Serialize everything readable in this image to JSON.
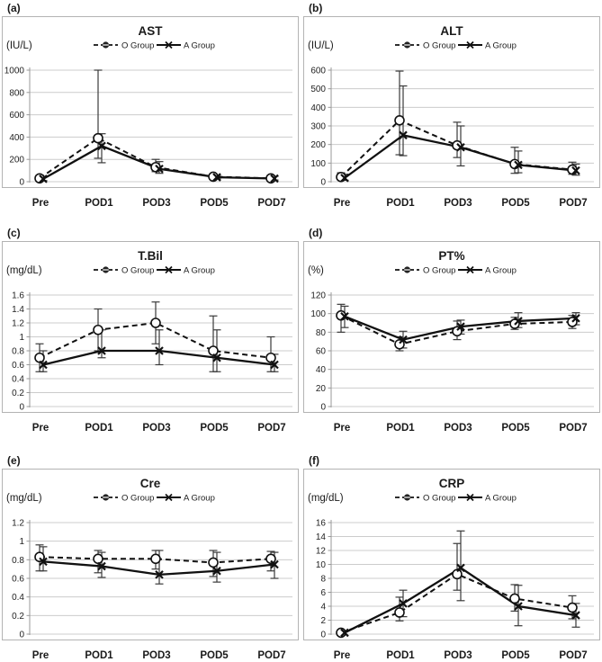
{
  "figure": {
    "background": "#ffffff",
    "colors": {
      "text": "#1a1a1a",
      "tick_text": "#222222",
      "grid": "#cccccc",
      "axis": "#999999",
      "panel_border": "#b3b3b3",
      "series_line": "#111111",
      "error_bar": "#3a3a3a",
      "marker_fill": "#ffffff"
    },
    "legend": {
      "o_label": "O Group",
      "a_label": "A Group"
    }
  },
  "chart_data": [
    {
      "type": "line",
      "letter": "(a)",
      "title": "AST",
      "ylabel": "(IU/L)",
      "categories": [
        "Pre",
        "POD1",
        "POD3",
        "POD5",
        "POD7"
      ],
      "ylim": [
        0,
        1000
      ],
      "yticks": [
        0,
        200,
        400,
        600,
        800,
        1000
      ],
      "grid": true,
      "legend_position": "top-center",
      "series": [
        {
          "name": "O Group",
          "line": "dashed",
          "marker": "circle",
          "values": [
            30,
            390,
            130,
            45,
            30
          ],
          "err_low": [
            12,
            210,
            90,
            28,
            18
          ],
          "err_high": [
            55,
            1000,
            200,
            62,
            45
          ]
        },
        {
          "name": "A Group",
          "line": "solid",
          "marker": "x",
          "values": [
            25,
            320,
            115,
            40,
            28
          ],
          "err_low": [
            10,
            170,
            75,
            25,
            15
          ],
          "err_high": [
            48,
            430,
            180,
            58,
            48
          ]
        }
      ]
    },
    {
      "type": "line",
      "letter": "(b)",
      "title": "ALT",
      "ylabel": "(IU/L)",
      "categories": [
        "Pre",
        "POD1",
        "POD3",
        "POD5",
        "POD7"
      ],
      "ylim": [
        0,
        600
      ],
      "yticks": [
        0,
        100,
        200,
        300,
        400,
        500,
        600
      ],
      "grid": true,
      "legend_position": "top-center",
      "series": [
        {
          "name": "O Group",
          "line": "dashed",
          "marker": "circle",
          "values": [
            25,
            330,
            195,
            95,
            65
          ],
          "err_low": [
            10,
            145,
            130,
            45,
            40
          ],
          "err_high": [
            48,
            595,
            320,
            185,
            105
          ]
        },
        {
          "name": "A Group",
          "line": "solid",
          "marker": "x",
          "values": [
            20,
            250,
            185,
            90,
            60
          ],
          "err_low": [
            8,
            140,
            85,
            48,
            35
          ],
          "err_high": [
            40,
            515,
            300,
            165,
            95
          ]
        }
      ]
    },
    {
      "type": "line",
      "letter": "(c)",
      "title": "T.Bil",
      "ylabel": "(mg/dL)",
      "categories": [
        "Pre",
        "POD1",
        "POD3",
        "POD5",
        "POD7"
      ],
      "ylim": [
        0,
        1.6
      ],
      "yticks": [
        0,
        0.2,
        0.4,
        0.6,
        0.8,
        1,
        1.2,
        1.4,
        1.6
      ],
      "grid": true,
      "legend_position": "top-center",
      "series": [
        {
          "name": "O Group",
          "line": "dashed",
          "marker": "circle",
          "values": [
            0.7,
            1.1,
            1.2,
            0.8,
            0.7
          ],
          "err_low": [
            0.5,
            0.8,
            0.9,
            0.5,
            0.5
          ],
          "err_high": [
            0.9,
            1.4,
            1.5,
            1.3,
            1.0
          ]
        },
        {
          "name": "A Group",
          "line": "solid",
          "marker": "x",
          "values": [
            0.6,
            0.8,
            0.8,
            0.7,
            0.6
          ],
          "err_low": [
            0.5,
            0.7,
            0.6,
            0.5,
            0.5
          ],
          "err_high": [
            0.8,
            1.1,
            1.1,
            1.1,
            0.75
          ]
        }
      ]
    },
    {
      "type": "line",
      "letter": "(d)",
      "title": "PT%",
      "ylabel": "(%)",
      "categories": [
        "Pre",
        "POD1",
        "POD3",
        "POD5",
        "POD7"
      ],
      "ylim": [
        0,
        120
      ],
      "yticks": [
        0,
        20,
        40,
        60,
        80,
        100,
        120
      ],
      "grid": true,
      "legend_position": "top-center",
      "series": [
        {
          "name": "O Group",
          "line": "dashed",
          "marker": "circle",
          "values": [
            98,
            67,
            81,
            89,
            91
          ],
          "err_low": [
            80,
            60,
            72,
            83,
            84
          ],
          "err_high": [
            110,
            75,
            92,
            96,
            98
          ]
        },
        {
          "name": "A Group",
          "line": "solid",
          "marker": "x",
          "values": [
            97,
            72,
            86,
            92,
            95
          ],
          "err_low": [
            85,
            63,
            78,
            85,
            88
          ],
          "err_high": [
            108,
            81,
            93,
            101,
            101
          ]
        }
      ]
    },
    {
      "type": "line",
      "letter": "(e)",
      "title": "Cre",
      "ylabel": "(mg/dL)",
      "categories": [
        "Pre",
        "POD1",
        "POD3",
        "POD5",
        "POD7"
      ],
      "ylim": [
        0,
        1.2
      ],
      "yticks": [
        0,
        0.2,
        0.4,
        0.6,
        0.8,
        1,
        1.2
      ],
      "grid": true,
      "legend_position": "top-center",
      "series": [
        {
          "name": "O Group",
          "line": "dashed",
          "marker": "circle",
          "values": [
            0.83,
            0.81,
            0.81,
            0.77,
            0.81
          ],
          "err_low": [
            0.68,
            0.66,
            0.7,
            0.62,
            0.68
          ],
          "err_high": [
            0.96,
            0.9,
            0.9,
            0.9,
            0.89
          ]
        },
        {
          "name": "A Group",
          "line": "solid",
          "marker": "x",
          "values": [
            0.78,
            0.73,
            0.64,
            0.68,
            0.75
          ],
          "err_low": [
            0.68,
            0.61,
            0.54,
            0.56,
            0.6
          ],
          "err_high": [
            0.94,
            0.88,
            0.9,
            0.88,
            0.88
          ]
        }
      ]
    },
    {
      "type": "line",
      "letter": "(f)",
      "title": "CRP",
      "ylabel": "(mg/dL)",
      "categories": [
        "Pre",
        "POD1",
        "POD3",
        "POD5",
        "POD7"
      ],
      "ylim": [
        0,
        16
      ],
      "yticks": [
        0,
        2,
        4,
        6,
        8,
        10,
        12,
        14,
        16
      ],
      "grid": true,
      "legend_position": "top-center",
      "series": [
        {
          "name": "O Group",
          "line": "dashed",
          "marker": "circle",
          "values": [
            0.2,
            3.1,
            8.6,
            5.1,
            3.8
          ],
          "err_low": [
            null,
            1.9,
            6.3,
            3.3,
            2.2
          ],
          "err_high": [
            null,
            5.3,
            13.0,
            7.1,
            5.5
          ]
        },
        {
          "name": "A Group",
          "line": "solid",
          "marker": "x",
          "values": [
            0.2,
            4.4,
            9.5,
            4.0,
            2.7
          ],
          "err_low": [
            null,
            2.5,
            4.8,
            1.2,
            1.0
          ],
          "err_high": [
            null,
            6.3,
            14.8,
            7.0,
            4.4
          ]
        }
      ]
    }
  ]
}
